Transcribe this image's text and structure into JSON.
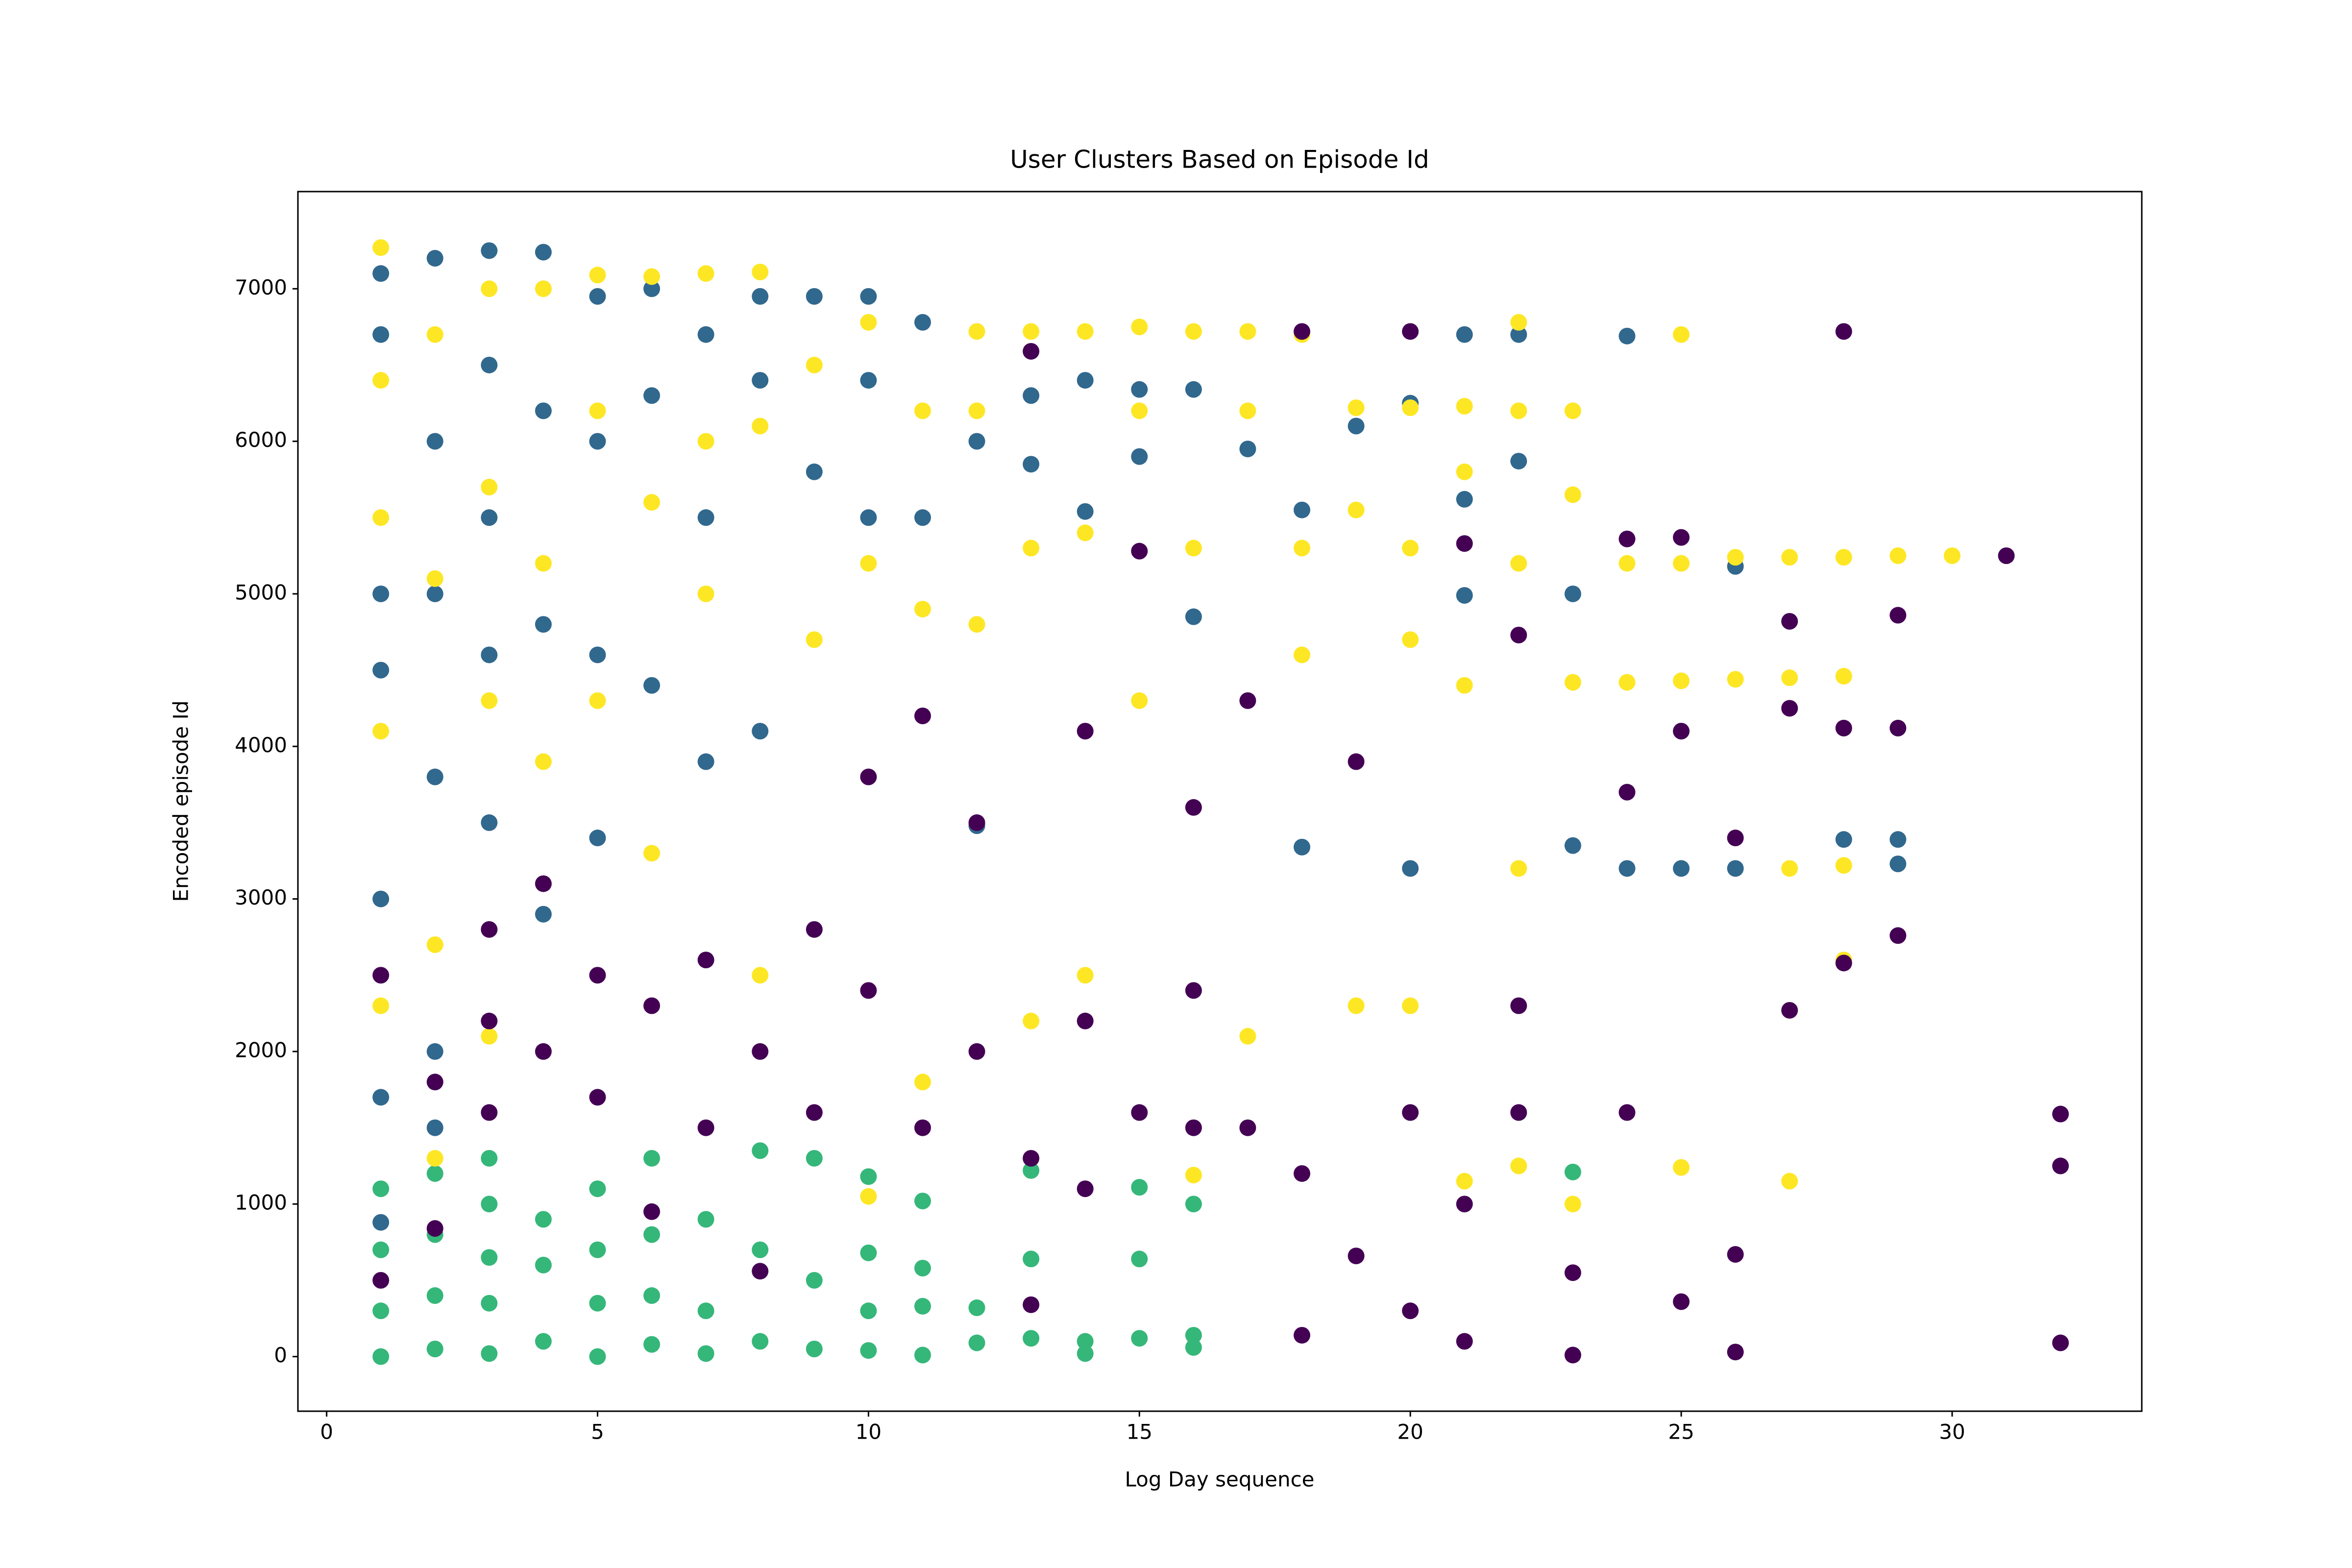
{
  "chart_data": {
    "type": "scatter",
    "title": "User Clusters Based on Episode Id",
    "x_label": "Log Day sequence",
    "y_label": "Encoded episode Id",
    "xlim": [
      -0.53,
      33.5
    ],
    "ylim": [
      -358,
      7637
    ],
    "xticks": [
      0,
      5,
      10,
      15,
      20,
      25,
      30
    ],
    "yticks": [
      0,
      1000,
      2000,
      3000,
      4000,
      5000,
      6000,
      7000
    ],
    "grid": false,
    "series": [
      {
        "color": "#31688e",
        "x": [
          1,
          1,
          1,
          1,
          1,
          1,
          2,
          2,
          2,
          2,
          2,
          3,
          3,
          3,
          3,
          3,
          4,
          4,
          4,
          4,
          5,
          5,
          5,
          5,
          6,
          6,
          6,
          7,
          7,
          7,
          8,
          8,
          8,
          9,
          9,
          10,
          10,
          10,
          11,
          11,
          12,
          12,
          13,
          13,
          14,
          14,
          15,
          15,
          16,
          16,
          17,
          18,
          18,
          19,
          20,
          20,
          21,
          21,
          21,
          22,
          22,
          23,
          23,
          24,
          24,
          25,
          26,
          26,
          28,
          29,
          29,
          2,
          1
        ],
        "values": [
          7100,
          6700,
          5000,
          4500,
          3000,
          1700,
          7200,
          6000,
          5000,
          3800,
          1500,
          7250,
          6500,
          5500,
          4600,
          3500,
          7240,
          6200,
          4800,
          2900,
          6950,
          6000,
          4600,
          3400,
          7000,
          6300,
          4400,
          6700,
          5500,
          3900,
          6950,
          6400,
          4100,
          6950,
          5800,
          6950,
          6400,
          5500,
          6780,
          5500,
          6000,
          3480,
          6300,
          5850,
          6400,
          5540,
          6340,
          5900,
          6340,
          4850,
          5950,
          5550,
          3340,
          6100,
          6250,
          3200,
          6700,
          5620,
          4990,
          6700,
          5870,
          5000,
          3350,
          6690,
          3200,
          3200,
          5180,
          3200,
          3390,
          3390,
          3230,
          2000,
          880
        ]
      },
      {
        "color": "#35b779",
        "x": [
          1,
          1,
          1,
          1,
          2,
          2,
          2,
          2,
          3,
          3,
          3,
          3,
          3,
          4,
          4,
          4,
          5,
          5,
          5,
          5,
          6,
          6,
          6,
          6,
          7,
          7,
          7,
          8,
          8,
          8,
          9,
          9,
          9,
          10,
          10,
          10,
          10,
          11,
          11,
          11,
          11,
          12,
          12,
          13,
          13,
          13,
          14,
          14,
          15,
          15,
          15,
          16,
          16,
          16,
          23
        ],
        "values": [
          0,
          300,
          700,
          1100,
          50,
          400,
          800,
          1200,
          20,
          350,
          650,
          1000,
          1300,
          100,
          600,
          900,
          0,
          350,
          700,
          1100,
          80,
          400,
          800,
          1300,
          20,
          300,
          900,
          100,
          700,
          1350,
          50,
          500,
          1300,
          40,
          300,
          680,
          1180,
          10,
          330,
          580,
          1020,
          90,
          320,
          120,
          640,
          1220,
          20,
          100,
          120,
          640,
          1110,
          60,
          140,
          1000,
          1210
        ]
      },
      {
        "color": "#fde725",
        "x": [
          1,
          1,
          1,
          1,
          1,
          2,
          2,
          2,
          2,
          3,
          3,
          3,
          3,
          4,
          4,
          4,
          5,
          5,
          5,
          6,
          6,
          6,
          7,
          7,
          7,
          8,
          8,
          8,
          9,
          9,
          10,
          10,
          10,
          11,
          11,
          11,
          12,
          12,
          12,
          13,
          13,
          13,
          14,
          14,
          14,
          15,
          15,
          15,
          16,
          16,
          16,
          17,
          17,
          17,
          18,
          18,
          18,
          19,
          19,
          19,
          20,
          20,
          20,
          20,
          21,
          21,
          21,
          21,
          22,
          22,
          22,
          22,
          22,
          23,
          23,
          23,
          23,
          24,
          24,
          25,
          25,
          25,
          25,
          26,
          26,
          27,
          27,
          27,
          27,
          28,
          28,
          28,
          28,
          29,
          30
        ],
        "values": [
          7270,
          6400,
          5500,
          4100,
          2300,
          6700,
          5100,
          2700,
          1300,
          7000,
          5700,
          4300,
          2100,
          7000,
          5200,
          3900,
          7090,
          6200,
          4300,
          7080,
          5600,
          3300,
          7100,
          6000,
          5000,
          7110,
          6100,
          2500,
          6500,
          4700,
          6780,
          5200,
          1050,
          6200,
          4900,
          1800,
          6720,
          6200,
          4800,
          6720,
          5300,
          2200,
          6720,
          5400,
          2500,
          6750,
          6200,
          4300,
          6720,
          5300,
          1190,
          6720,
          6200,
          2100,
          6700,
          5300,
          4600,
          6220,
          5550,
          2300,
          6220,
          5300,
          4700,
          2300,
          6230,
          5800,
          4400,
          1150,
          6780,
          6200,
          5200,
          3200,
          1250,
          6200,
          5650,
          4420,
          1000,
          5200,
          4420,
          6700,
          5200,
          4430,
          1240,
          5240,
          4440,
          5240,
          4450,
          3200,
          1150,
          5240,
          4460,
          3220,
          2600,
          5250,
          5250
        ]
      },
      {
        "color": "#440154",
        "x": [
          1,
          1,
          2,
          2,
          3,
          3,
          3,
          4,
          4,
          5,
          5,
          6,
          6,
          7,
          7,
          8,
          8,
          9,
          9,
          10,
          10,
          11,
          11,
          12,
          12,
          13,
          13,
          14,
          14,
          15,
          15,
          16,
          16,
          17,
          17,
          18,
          18,
          18,
          19,
          19,
          20,
          20,
          21,
          21,
          21,
          22,
          22,
          23,
          23,
          24,
          24,
          25,
          25,
          26,
          26,
          27,
          27,
          28,
          28,
          29,
          29,
          31,
          32,
          32,
          32,
          13,
          14,
          16,
          20,
          22,
          24,
          25,
          26,
          27,
          28,
          29
        ],
        "values": [
          500,
          2500,
          1800,
          840,
          2200,
          1600,
          2800,
          2000,
          3100,
          1700,
          2500,
          2300,
          950,
          1500,
          2600,
          2000,
          560,
          2800,
          1600,
          2400,
          3800,
          1500,
          4200,
          2000,
          3500,
          1300,
          340,
          2200,
          4100,
          1600,
          5280,
          2400,
          3600,
          1500,
          4300,
          1200,
          140,
          6720,
          660,
          3900,
          300,
          6720,
          1000,
          5330,
          100,
          2300,
          4730,
          10,
          550,
          1600,
          5360,
          360,
          5370,
          30,
          670,
          2270,
          4820,
          6720,
          2580,
          4860,
          2760,
          5250,
          1590,
          1250,
          90,
          6590,
          1100,
          1500,
          1600,
          1600,
          3700,
          4100,
          3400,
          4250,
          4120,
          4120
        ]
      }
    ]
  }
}
